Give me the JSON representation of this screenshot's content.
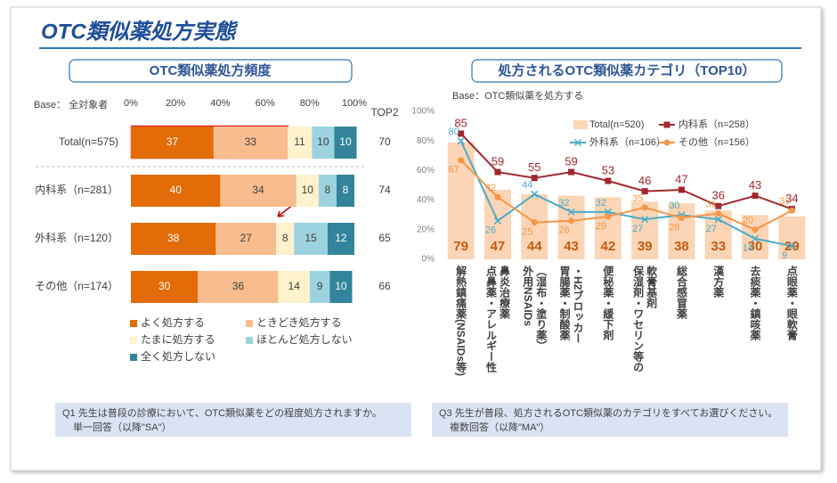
{
  "title": "OTC類似薬処方実態",
  "chart_data": [
    {
      "type": "stackedbar",
      "title": "OTC類似薬処方頻度",
      "base": "Base： 全対象者",
      "categories": [
        "Total(n=575)",
        "内科系（n=281）",
        "外科系（n=120）",
        "その他（n=174）"
      ],
      "series": [
        {
          "name": "よく処方する",
          "color": "#e36c09",
          "label_color": "#ffffff",
          "values": [
            37,
            40,
            38,
            30
          ]
        },
        {
          "name": "ときどき処方する",
          "color": "#f8bc8f",
          "label_color": "#404040",
          "values": [
            33,
            34,
            27,
            36
          ]
        },
        {
          "name": "たまに処方する",
          "color": "#fff2cc",
          "label_color": "#404040",
          "values": [
            11,
            10,
            8,
            14
          ]
        },
        {
          "name": "ほとんど処方しない",
          "color": "#9dd3e0",
          "label_color": "#404040",
          "values": [
            10,
            8,
            15,
            9
          ]
        },
        {
          "name": "全く処方しない",
          "color": "#31849b",
          "label_color": "#ffffff",
          "values": [
            10,
            8,
            12,
            10
          ]
        }
      ],
      "xlim": [
        0,
        100
      ],
      "xticks": [
        {
          "value": 0,
          "label": "0%"
        },
        {
          "value": 20,
          "label": "20%"
        },
        {
          "value": 40,
          "label": "40%"
        },
        {
          "value": 60,
          "label": "60%"
        },
        {
          "value": 80,
          "label": "80%"
        },
        {
          "value": 100,
          "label": "100%"
        }
      ],
      "top2_label": "TOP2",
      "top2": [
        70,
        74,
        65,
        66
      ],
      "legend": "bottom"
    },
    {
      "type": "combo",
      "title": "処方されるOTC類似薬カテゴリ（TOP10）",
      "base": "Base：OTC類似薬を処方する",
      "categories": [
        [
          "解熱鎮痛薬(NSAIDs等)"
        ],
        [
          "点鼻薬・アレルギー性",
          "鼻炎治療薬"
        ],
        [
          "外用NSAIDs",
          "（湿布・塗り薬）"
        ],
        [
          "胃腸薬・制酸薬",
          "・H2ブロッカー"
        ],
        [
          "便秘薬・緩下剤"
        ],
        [
          "保湿剤・ワセリン等の",
          "軟膏基剤"
        ],
        [
          "総合感冒薬"
        ],
        [
          "漢方薬"
        ],
        [
          "去痰薬・鎮咳薬"
        ],
        [
          "点眼薬・眼軟膏"
        ]
      ],
      "series": [
        {
          "name": "Total(n=520)",
          "kind": "bar",
          "color": "#fbd5b5",
          "label_color": "#c55a11",
          "values": [
            79,
            47,
            44,
            43,
            42,
            39,
            38,
            33,
            30,
            29
          ]
        },
        {
          "name": "内科系（n=258）",
          "kind": "line",
          "marker": "square",
          "color": "#a0282d",
          "values": [
            85,
            59,
            55,
            59,
            53,
            46,
            47,
            36,
            43,
            34
          ]
        },
        {
          "name": "外科系（n=106）",
          "kind": "line",
          "marker": "x",
          "color": "#4bacc6",
          "values": [
            80,
            26,
            44,
            32,
            32,
            27,
            30,
            27,
            14,
            9
          ]
        },
        {
          "name": "その他（n=156）",
          "kind": "line",
          "marker": "circle",
          "color": "#f79646",
          "values": [
            67,
            42,
            25,
            26,
            29,
            35,
            28,
            31,
            20,
            33
          ]
        }
      ],
      "ylim": [
        0,
        100
      ],
      "yticks": [
        {
          "value": 0,
          "label": "0%"
        },
        {
          "value": 20,
          "label": "20%"
        },
        {
          "value": 40,
          "label": "40%"
        },
        {
          "value": 60,
          "label": "60%"
        },
        {
          "value": 80,
          "label": "80%"
        },
        {
          "value": 100,
          "label": "100%"
        }
      ],
      "legend": "top-right"
    }
  ],
  "notes": [
    {
      "question": "Q1 先生は普段の診療において、OTC類似薬をどの程度処方されますか。",
      "answer": "単一回答（以降\"SA\"）"
    },
    {
      "question": "Q3 先生が普段、処方されるOTC類似薬のカテゴリをすべてお選びください。",
      "answer": "複数回答（以降\"MA\"）"
    }
  ]
}
